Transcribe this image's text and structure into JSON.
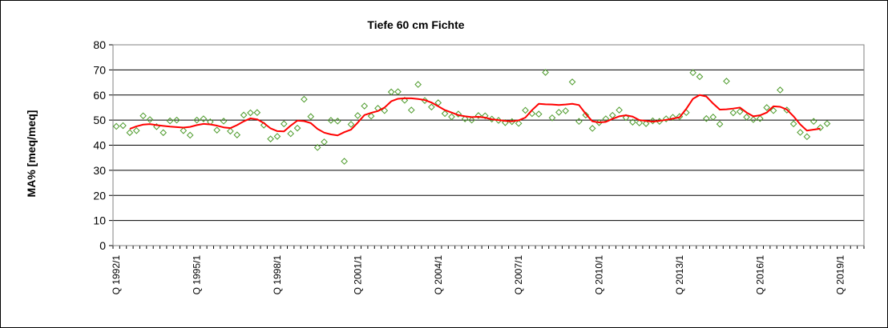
{
  "chart_data": {
    "type": "line",
    "title": "Tiefe  60 cm     Fichte",
    "ylabel": "MA% [meq/meq]",
    "xlabel": "",
    "ylim": [
      0,
      80
    ],
    "yticks": [
      "0",
      "10",
      "20",
      "30",
      "40",
      "50",
      "60",
      "70",
      "80"
    ],
    "xticks": [
      {
        "label": "Q 1992/1",
        "index": 0
      },
      {
        "label": "Q 1995/1",
        "index": 12
      },
      {
        "label": "Q 1998/1",
        "index": 24
      },
      {
        "label": "Q 2001/1",
        "index": 36
      },
      {
        "label": "Q 2004/1",
        "index": 48
      },
      {
        "label": "Q 2007/1",
        "index": 60
      },
      {
        "label": "Q 2010/1",
        "index": 72
      },
      {
        "label": "Q 2013/1",
        "index": 84
      },
      {
        "label": "Q 2016/1",
        "index": 96
      },
      {
        "label": "Q 2019/1",
        "index": 108
      }
    ],
    "quarter_count": 112,
    "grid": "horizontal",
    "series": [
      {
        "marker": "diamond",
        "color": "#4c9a2a",
        "points": [
          [
            0,
            47.5
          ],
          [
            1,
            47.8
          ],
          [
            2,
            45.0
          ],
          [
            3,
            45.8
          ],
          [
            4,
            51.7
          ],
          [
            5,
            50.2
          ],
          [
            6,
            47.4
          ],
          [
            7,
            45.0
          ],
          [
            8,
            49.7
          ],
          [
            9,
            50.0
          ],
          [
            10,
            45.8
          ],
          [
            11,
            44.0
          ],
          [
            12,
            50.0
          ],
          [
            13,
            50.5
          ],
          [
            14,
            49.3
          ],
          [
            15,
            46.0
          ],
          [
            16,
            49.6
          ],
          [
            17,
            45.6
          ],
          [
            18,
            44.1
          ],
          [
            19,
            52.0
          ],
          [
            20,
            52.9
          ],
          [
            21,
            53.0
          ],
          [
            22,
            48.0
          ],
          [
            23,
            42.5
          ],
          [
            24,
            43.5
          ],
          [
            25,
            48.5
          ],
          [
            26,
            44.6
          ],
          [
            27,
            46.8
          ],
          [
            28,
            58.3
          ],
          [
            29,
            51.4
          ],
          [
            30,
            39.1
          ],
          [
            31,
            41.3
          ],
          [
            32,
            49.9
          ],
          [
            33,
            49.6
          ],
          [
            34,
            33.6
          ],
          [
            35,
            48.3
          ],
          [
            36,
            51.8
          ],
          [
            37,
            55.6
          ],
          [
            38,
            51.6
          ],
          [
            39,
            54.7
          ],
          [
            40,
            53.8
          ],
          [
            41,
            61.2
          ],
          [
            42,
            61.3
          ],
          [
            43,
            57.9
          ],
          [
            44,
            54.0
          ],
          [
            45,
            64.2
          ],
          [
            46,
            57.8
          ],
          [
            47,
            55.2
          ],
          [
            48,
            56.9
          ],
          [
            49,
            52.6
          ],
          [
            50,
            51.3
          ],
          [
            51,
            52.4
          ],
          [
            52,
            50.5
          ],
          [
            53,
            50.0
          ],
          [
            54,
            51.8
          ],
          [
            55,
            51.7
          ],
          [
            56,
            50.4
          ],
          [
            57,
            49.9
          ],
          [
            58,
            49.0
          ],
          [
            59,
            49.4
          ],
          [
            60,
            48.7
          ],
          [
            61,
            53.9
          ],
          [
            62,
            52.6
          ],
          [
            63,
            52.4
          ],
          [
            64,
            69.0
          ],
          [
            65,
            50.9
          ],
          [
            66,
            53.1
          ],
          [
            67,
            53.7
          ],
          [
            68,
            65.2
          ],
          [
            69,
            49.5
          ],
          [
            70,
            52.0
          ],
          [
            71,
            46.7
          ],
          [
            72,
            49.0
          ],
          [
            73,
            50.5
          ],
          [
            74,
            51.9
          ],
          [
            75,
            54.0
          ],
          [
            76,
            51.0
          ],
          [
            77,
            49.2
          ],
          [
            78,
            48.9
          ],
          [
            79,
            48.6
          ],
          [
            80,
            49.7
          ],
          [
            81,
            49.5
          ],
          [
            82,
            50.5
          ],
          [
            83,
            51.1
          ],
          [
            84,
            51.4
          ],
          [
            85,
            53.0
          ],
          [
            86,
            68.9
          ],
          [
            87,
            67.3
          ],
          [
            88,
            50.6
          ],
          [
            89,
            51.2
          ],
          [
            90,
            48.4
          ],
          [
            91,
            65.5
          ],
          [
            92,
            52.9
          ],
          [
            93,
            53.4
          ],
          [
            94,
            51.2
          ],
          [
            95,
            50.2
          ],
          [
            96,
            50.6
          ],
          [
            97,
            55.0
          ],
          [
            98,
            53.8
          ],
          [
            99,
            62.0
          ],
          [
            100,
            54.0
          ],
          [
            101,
            48.5
          ],
          [
            102,
            45.1
          ],
          [
            103,
            43.4
          ],
          [
            104,
            49.5
          ],
          [
            105,
            47.0
          ],
          [
            106,
            48.6
          ]
        ]
      },
      {
        "marker": "none",
        "color": "#ff0000",
        "points": [
          [
            2,
            46.5
          ],
          [
            3,
            47.5
          ],
          [
            4,
            48.2
          ],
          [
            5,
            48.4
          ],
          [
            6,
            48.0
          ],
          [
            7,
            47.7
          ],
          [
            8,
            47.4
          ],
          [
            9,
            47.2
          ],
          [
            10,
            47.0
          ],
          [
            11,
            47.3
          ],
          [
            12,
            48.0
          ],
          [
            13,
            48.5
          ],
          [
            14,
            48.3
          ],
          [
            15,
            47.8
          ],
          [
            16,
            47.1
          ],
          [
            17,
            46.8
          ],
          [
            18,
            48.0
          ],
          [
            19,
            49.5
          ],
          [
            20,
            50.7
          ],
          [
            21,
            50.3
          ],
          [
            22,
            48.8
          ],
          [
            23,
            46.7
          ],
          [
            24,
            45.6
          ],
          [
            25,
            45.5
          ],
          [
            26,
            47.8
          ],
          [
            27,
            49.8
          ],
          [
            28,
            49.6
          ],
          [
            29,
            48.8
          ],
          [
            30,
            46.5
          ],
          [
            31,
            45.0
          ],
          [
            32,
            44.3
          ],
          [
            33,
            43.9
          ],
          [
            34,
            45.2
          ],
          [
            35,
            46.2
          ],
          [
            36,
            49.0
          ],
          [
            37,
            52.0
          ],
          [
            38,
            52.9
          ],
          [
            39,
            53.6
          ],
          [
            40,
            55.0
          ],
          [
            41,
            57.5
          ],
          [
            42,
            58.5
          ],
          [
            43,
            58.7
          ],
          [
            44,
            58.7
          ],
          [
            45,
            58.4
          ],
          [
            46,
            58.0
          ],
          [
            47,
            57.0
          ],
          [
            48,
            55.5
          ],
          [
            49,
            54.0
          ],
          [
            50,
            53.0
          ],
          [
            51,
            52.0
          ],
          [
            52,
            51.5
          ],
          [
            53,
            51.2
          ],
          [
            54,
            51.3
          ],
          [
            55,
            51.0
          ],
          [
            56,
            50.3
          ],
          [
            57,
            50.0
          ],
          [
            58,
            49.7
          ],
          [
            59,
            49.5
          ],
          [
            60,
            49.9
          ],
          [
            61,
            51.0
          ],
          [
            62,
            54.0
          ],
          [
            63,
            56.5
          ],
          [
            64,
            56.3
          ],
          [
            65,
            56.2
          ],
          [
            66,
            56.0
          ],
          [
            67,
            56.2
          ],
          [
            68,
            56.5
          ],
          [
            69,
            56.0
          ],
          [
            70,
            52.5
          ],
          [
            71,
            49.5
          ],
          [
            72,
            49.1
          ],
          [
            73,
            49.3
          ],
          [
            74,
            50.5
          ],
          [
            75,
            51.5
          ],
          [
            76,
            51.9
          ],
          [
            77,
            51.4
          ],
          [
            78,
            50.0
          ],
          [
            79,
            49.7
          ],
          [
            80,
            49.4
          ],
          [
            81,
            49.7
          ],
          [
            82,
            50.1
          ],
          [
            83,
            50.6
          ],
          [
            84,
            51.1
          ],
          [
            85,
            54.5
          ],
          [
            86,
            58.5
          ],
          [
            87,
            60.0
          ],
          [
            88,
            59.4
          ],
          [
            89,
            56.6
          ],
          [
            90,
            54.2
          ],
          [
            91,
            54.3
          ],
          [
            92,
            54.6
          ],
          [
            93,
            55.0
          ],
          [
            94,
            53.0
          ],
          [
            95,
            51.5
          ],
          [
            96,
            51.9
          ],
          [
            97,
            53.0
          ],
          [
            98,
            55.5
          ],
          [
            99,
            55.3
          ],
          [
            100,
            54.2
          ],
          [
            101,
            51.5
          ],
          [
            102,
            48.3
          ],
          [
            103,
            45.8
          ],
          [
            104,
            46.2
          ],
          [
            105,
            46.6
          ]
        ]
      }
    ]
  }
}
